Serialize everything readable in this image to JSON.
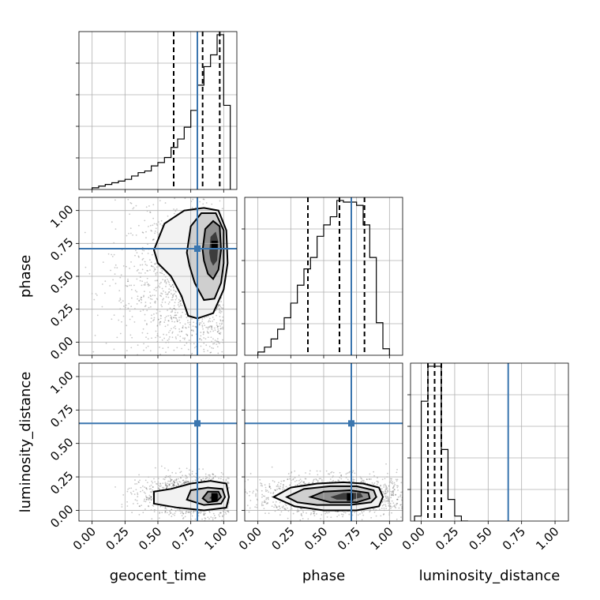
{
  "chart_data": {
    "type": "corner",
    "parameters": [
      "geocent_time",
      "phase",
      "luminosity_distance"
    ],
    "tick_values": [
      0.0,
      0.25,
      0.5,
      0.75,
      1.0
    ],
    "tick_labels": [
      "0.00",
      "0.25",
      "0.50",
      "0.75",
      "1.00"
    ],
    "ranges": [
      [
        -0.1,
        1.1
      ],
      [
        -0.1,
        1.1
      ],
      [
        -0.08,
        1.1
      ]
    ],
    "truth_values": [
      0.8,
      0.71,
      0.65
    ],
    "truth_color": "#3b76af",
    "grid": true,
    "histograms": [
      {
        "parameter": "geocent_time",
        "bin_edges": [
          0.0,
          0.05,
          0.1,
          0.15,
          0.2,
          0.25,
          0.3,
          0.35,
          0.4,
          0.45,
          0.5,
          0.55,
          0.6,
          0.65,
          0.7,
          0.75,
          0.8,
          0.85,
          0.9,
          0.95,
          1.0,
          1.05
        ],
        "counts": [
          0.01,
          0.02,
          0.03,
          0.04,
          0.05,
          0.06,
          0.08,
          0.1,
          0.11,
          0.14,
          0.16,
          0.19,
          0.25,
          0.3,
          0.37,
          0.47,
          0.62,
          0.73,
          0.8,
          0.92,
          0.5
        ],
        "quantiles": [
          0.62,
          0.84,
          0.97
        ]
      },
      {
        "parameter": "phase",
        "bin_edges": [
          0.0,
          0.05,
          0.1,
          0.15,
          0.2,
          0.25,
          0.3,
          0.35,
          0.4,
          0.45,
          0.5,
          0.55,
          0.6,
          0.65,
          0.7,
          0.75,
          0.8,
          0.85,
          0.9,
          0.95,
          1.0
        ],
        "counts": [
          0.02,
          0.05,
          0.1,
          0.16,
          0.23,
          0.32,
          0.43,
          0.53,
          0.6,
          0.73,
          0.8,
          0.85,
          0.95,
          0.94,
          0.94,
          0.92,
          0.8,
          0.6,
          0.2,
          0.04
        ],
        "quantiles": [
          0.38,
          0.62,
          0.81
        ]
      },
      {
        "parameter": "luminosity_distance",
        "bin_edges": [
          -0.05,
          0.0,
          0.05,
          0.1,
          0.15,
          0.2,
          0.25,
          0.3,
          0.35
        ],
        "counts": [
          0.03,
          0.72,
          0.93,
          0.93,
          0.43,
          0.13,
          0.03,
          0.0
        ],
        "quantiles": [
          0.05,
          0.1,
          0.15
        ]
      }
    ],
    "pairs": [
      {
        "x": "geocent_time",
        "y": "phase",
        "peak": [
          0.93,
          0.74
        ],
        "contours": [
          [
            [
              0.47,
              0.7
            ],
            [
              0.55,
              0.9
            ],
            [
              0.7,
              1.0
            ],
            [
              0.85,
              1.02
            ],
            [
              0.96,
              1.0
            ],
            [
              1.02,
              0.85
            ],
            [
              1.03,
              0.6
            ],
            [
              1.0,
              0.4
            ],
            [
              0.92,
              0.22
            ],
            [
              0.8,
              0.18
            ],
            [
              0.73,
              0.2
            ],
            [
              0.68,
              0.35
            ],
            [
              0.6,
              0.5
            ],
            [
              0.5,
              0.6
            ]
          ],
          [
            [
              0.72,
              0.68
            ],
            [
              0.75,
              0.88
            ],
            [
              0.83,
              0.98
            ],
            [
              0.94,
              0.98
            ],
            [
              1.0,
              0.85
            ],
            [
              1.0,
              0.6
            ],
            [
              0.98,
              0.45
            ],
            [
              0.93,
              0.33
            ],
            [
              0.85,
              0.32
            ],
            [
              0.78,
              0.45
            ],
            [
              0.74,
              0.58
            ]
          ],
          [
            [
              0.84,
              0.7
            ],
            [
              0.86,
              0.86
            ],
            [
              0.92,
              0.92
            ],
            [
              0.97,
              0.88
            ],
            [
              0.98,
              0.7
            ],
            [
              0.96,
              0.55
            ],
            [
              0.92,
              0.48
            ],
            [
              0.88,
              0.52
            ],
            [
              0.85,
              0.62
            ]
          ],
          [
            [
              0.89,
              0.68
            ],
            [
              0.9,
              0.8
            ],
            [
              0.94,
              0.84
            ],
            [
              0.96,
              0.76
            ],
            [
              0.95,
              0.62
            ],
            [
              0.92,
              0.58
            ],
            [
              0.9,
              0.62
            ]
          ]
        ]
      },
      {
        "x": "geocent_time",
        "y": "luminosity_distance",
        "peak": [
          0.93,
          0.1
        ],
        "contours": [
          [
            [
              0.47,
              0.05
            ],
            [
              0.47,
              0.14
            ],
            [
              0.6,
              0.16
            ],
            [
              0.75,
              0.2
            ],
            [
              0.9,
              0.22
            ],
            [
              1.02,
              0.2
            ],
            [
              1.04,
              0.1
            ],
            [
              1.02,
              0.02
            ],
            [
              0.85,
              0.0
            ],
            [
              0.65,
              0.02
            ]
          ],
          [
            [
              0.72,
              0.08
            ],
            [
              0.75,
              0.15
            ],
            [
              0.88,
              0.17
            ],
            [
              0.99,
              0.16
            ],
            [
              1.01,
              0.1
            ],
            [
              0.98,
              0.05
            ],
            [
              0.85,
              0.04
            ]
          ],
          [
            [
              0.84,
              0.09
            ],
            [
              0.88,
              0.14
            ],
            [
              0.96,
              0.14
            ],
            [
              0.98,
              0.1
            ],
            [
              0.95,
              0.07
            ],
            [
              0.88,
              0.06
            ]
          ],
          [
            [
              0.89,
              0.09
            ],
            [
              0.92,
              0.12
            ],
            [
              0.96,
              0.12
            ],
            [
              0.96,
              0.09
            ],
            [
              0.93,
              0.08
            ]
          ]
        ]
      },
      {
        "x": "phase",
        "y": "luminosity_distance",
        "peak": [
          0.7,
          0.1
        ],
        "contours": [
          [
            [
              0.12,
              0.1
            ],
            [
              0.25,
              0.17
            ],
            [
              0.45,
              0.2
            ],
            [
              0.65,
              0.21
            ],
            [
              0.8,
              0.2
            ],
            [
              0.92,
              0.17
            ],
            [
              0.95,
              0.1
            ],
            [
              0.92,
              0.03
            ],
            [
              0.75,
              0.0
            ],
            [
              0.5,
              0.0
            ],
            [
              0.28,
              0.03
            ]
          ],
          [
            [
              0.22,
              0.1
            ],
            [
              0.35,
              0.16
            ],
            [
              0.55,
              0.18
            ],
            [
              0.75,
              0.18
            ],
            [
              0.88,
              0.15
            ],
            [
              0.9,
              0.1
            ],
            [
              0.86,
              0.06
            ],
            [
              0.7,
              0.04
            ],
            [
              0.45,
              0.04
            ],
            [
              0.3,
              0.06
            ]
          ],
          [
            [
              0.4,
              0.1
            ],
            [
              0.5,
              0.14
            ],
            [
              0.7,
              0.15
            ],
            [
              0.84,
              0.13
            ],
            [
              0.85,
              0.09
            ],
            [
              0.75,
              0.06
            ],
            [
              0.55,
              0.06
            ]
          ],
          [
            [
              0.55,
              0.1
            ],
            [
              0.65,
              0.13
            ],
            [
              0.78,
              0.13
            ],
            [
              0.8,
              0.1
            ],
            [
              0.72,
              0.08
            ],
            [
              0.6,
              0.08
            ]
          ]
        ]
      }
    ]
  }
}
